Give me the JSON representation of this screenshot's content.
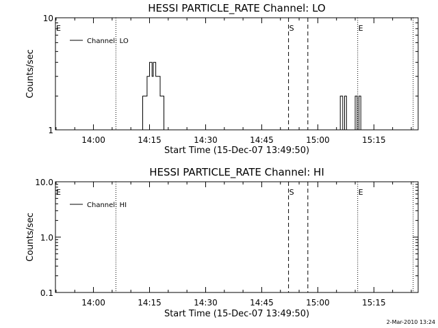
{
  "footer": {
    "stamp": "2-Mar-2010 13:24"
  },
  "chart_data": [
    {
      "type": "line",
      "title": "HESSI PARTICLE_RATE Channel: LO",
      "xlabel": "Start Time (15-Dec-07 13:49:50)",
      "ylabel": "Counts/sec",
      "yscale": "log",
      "xlim": [
        "13:49:50",
        "15:26:50"
      ],
      "ylim": [
        1,
        10
      ],
      "xticks": [
        "14:00",
        "14:15",
        "14:30",
        "14:45",
        "15:00",
        "15:15"
      ],
      "yticks": [
        "1",
        "10"
      ],
      "grid": false,
      "legend": {
        "placement": "top-left",
        "entries": [
          "Channel: LO"
        ]
      },
      "series": [
        {
          "name": "Channel: LO",
          "points": [
            [
              "13:49:50",
              1
            ],
            [
              "14:13:10",
              1
            ],
            [
              "14:13:10",
              2
            ],
            [
              "14:14:20",
              2
            ],
            [
              "14:14:20",
              3
            ],
            [
              "14:15:00",
              3
            ],
            [
              "14:15:00",
              4
            ],
            [
              "14:15:40",
              4
            ],
            [
              "14:15:40",
              3
            ],
            [
              "14:16:00",
              3
            ],
            [
              "14:16:00",
              4
            ],
            [
              "14:16:40",
              4
            ],
            [
              "14:16:40",
              3
            ],
            [
              "14:17:50",
              3
            ],
            [
              "14:17:50",
              2
            ],
            [
              "14:18:50",
              2
            ],
            [
              "14:18:50",
              1
            ],
            [
              "15:06:00",
              1
            ],
            [
              "15:06:00",
              2
            ],
            [
              "15:06:40",
              2
            ],
            [
              "15:06:40",
              1
            ],
            [
              "15:07:10",
              1
            ],
            [
              "15:07:10",
              2
            ],
            [
              "15:07:40",
              2
            ],
            [
              "15:07:40",
              1
            ],
            [
              "15:10:00",
              1
            ],
            [
              "15:10:00",
              2
            ],
            [
              "15:10:30",
              2
            ],
            [
              "15:10:30",
              1
            ],
            [
              "15:11:00",
              1
            ],
            [
              "15:11:00",
              2
            ],
            [
              "15:11:30",
              2
            ],
            [
              "15:11:30",
              1
            ],
            [
              "15:26:50",
              1
            ]
          ]
        }
      ],
      "markers": [
        {
          "time": "13:49:50",
          "label": "E",
          "style": "none"
        },
        {
          "time": "14:06:00",
          "label": "",
          "style": "dotted"
        },
        {
          "time": "14:52:10",
          "label": "S",
          "style": "dashed"
        },
        {
          "time": "14:57:20",
          "label": "",
          "style": "dashed"
        },
        {
          "time": "15:10:40",
          "label": "E",
          "style": "dotted"
        },
        {
          "time": "15:25:30",
          "label": "",
          "style": "dotted"
        }
      ]
    },
    {
      "type": "line",
      "title": "HESSI PARTICLE_RATE Channel: HI",
      "xlabel": "Start Time (15-Dec-07 13:49:50)",
      "ylabel": "Counts/sec",
      "yscale": "log",
      "xlim": [
        "13:49:50",
        "15:26:50"
      ],
      "ylim": [
        0.1,
        10
      ],
      "xticks": [
        "14:00",
        "14:15",
        "14:30",
        "14:45",
        "15:00",
        "15:15"
      ],
      "yticks": [
        "0.1",
        "1.0",
        "10.0"
      ],
      "grid": false,
      "legend": {
        "placement": "top-left",
        "entries": [
          "Channel: HI"
        ]
      },
      "series": [
        {
          "name": "Channel: HI",
          "points": []
        }
      ],
      "markers": [
        {
          "time": "13:49:50",
          "label": "E",
          "style": "none"
        },
        {
          "time": "14:06:00",
          "label": "",
          "style": "dotted"
        },
        {
          "time": "14:52:10",
          "label": "S",
          "style": "dashed"
        },
        {
          "time": "14:57:20",
          "label": "",
          "style": "dashed"
        },
        {
          "time": "15:10:40",
          "label": "E",
          "style": "dotted"
        },
        {
          "time": "15:25:30",
          "label": "",
          "style": "dotted"
        }
      ]
    }
  ]
}
